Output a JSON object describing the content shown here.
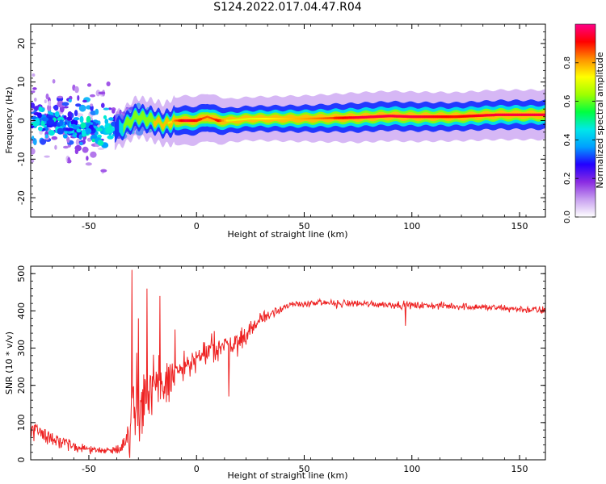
{
  "title": "S124.2022.017.04.47.R04",
  "chart_data": [
    {
      "type": "heatmap",
      "xlabel": "Height of straight line (km)",
      "ylabel": "Frequency (Hz)",
      "xlim": [
        -77,
        162
      ],
      "ylim": [
        -25,
        25
      ],
      "xticks": [
        -50,
        0,
        50,
        100,
        150
      ],
      "yticks": [
        -20,
        -10,
        0,
        10,
        20
      ],
      "colorbar": {
        "label": "Normalized spectral amplitude",
        "range": [
          0,
          1
        ],
        "ticks": [
          "0.0",
          "0.2",
          "0.4",
          "0.6",
          "0.8"
        ],
        "colors": [
          "#ffffff",
          "#c8a0f0",
          "#8a2be2",
          "#2200ff",
          "#00a0ff",
          "#00e8e8",
          "#00ff40",
          "#a0ff00",
          "#ffff00",
          "#ff9000",
          "#ff0000",
          "#ff0088"
        ]
      },
      "ridge": {
        "x": [
          -77,
          -65,
          -55,
          -45,
          -35,
          -28,
          -20,
          -15,
          -10,
          -5,
          0,
          5,
          10,
          15,
          25,
          50,
          75,
          90,
          100,
          120,
          140,
          162
        ],
        "freq_hz": [
          0,
          -1,
          -2,
          -3,
          -2,
          1,
          0,
          -1,
          0,
          0,
          0,
          1,
          0,
          0,
          0.5,
          0.5,
          0.8,
          1.2,
          1,
          1,
          1.5,
          1.5
        ],
        "amplitude": [
          0.4,
          0.45,
          0.45,
          0.35,
          0.4,
          0.5,
          0.6,
          0.6,
          0.85,
          0.95,
          0.9,
          0.85,
          0.9,
          0.7,
          0.7,
          0.8,
          0.95,
          0.95,
          0.95,
          0.9,
          0.95,
          0.95
        ]
      },
      "grid": false
    },
    {
      "type": "line",
      "xlabel": "Height of straight line (km)",
      "ylabel": "SNR (10 * v/v)",
      "xlim": [
        -77,
        162
      ],
      "ylim": [
        0,
        520
      ],
      "xticks": [
        -50,
        0,
        50,
        100,
        150
      ],
      "yticks": [
        0,
        100,
        200,
        300,
        400,
        500
      ],
      "series": [
        {
          "color": "#ee2222",
          "envelope": {
            "x": [
              -77,
              -70,
              -60,
              -50,
              -40,
              -33,
              -30,
              -25,
              -20,
              -10,
              0,
              10,
              20,
              30,
              40,
              50,
              75,
              100,
              125,
              150,
              162
            ],
            "mean": [
              90,
              65,
              40,
              28,
              25,
              40,
              120,
              160,
              180,
              230,
              270,
              300,
              320,
              380,
              410,
              420,
              420,
              415,
              412,
              405,
              400
            ],
            "noise": [
              40,
              30,
              20,
              12,
              10,
              25,
              130,
              120,
              110,
              60,
              40,
              45,
              40,
              25,
              15,
              12,
              12,
              12,
              12,
              12,
              15
            ]
          },
          "spikes": [
            [
              -30,
              510
            ],
            [
              -27,
              380
            ],
            [
              -23,
              460
            ],
            [
              -17,
              440
            ],
            [
              -10,
              350
            ],
            [
              15,
              170
            ],
            [
              97,
              360
            ]
          ]
        }
      ],
      "grid": false
    }
  ]
}
